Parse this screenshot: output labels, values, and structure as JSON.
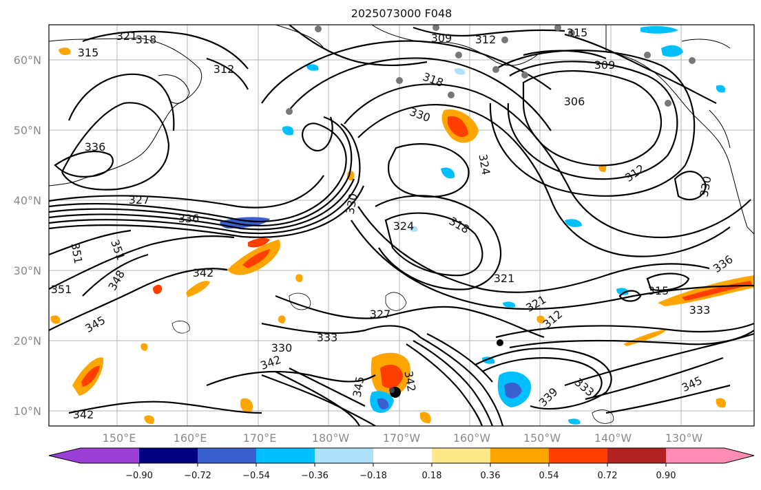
{
  "title": "2025073000 F048",
  "lat_ticks": [
    "60°N",
    "50°N",
    "40°N",
    "30°N",
    "20°N",
    "10°N"
  ],
  "lon_ticks": [
    "150°E",
    "160°E",
    "170°E",
    "180°W",
    "170°W",
    "160°W",
    "150°W",
    "140°W",
    "130°W"
  ],
  "contour_labels": [
    "321",
    "318",
    "315",
    "312",
    "309",
    "312",
    "315",
    "306",
    "309",
    "336",
    "327",
    "336",
    "351",
    "351",
    "348",
    "351",
    "345",
    "342",
    "342",
    "330",
    "324",
    "330",
    "324",
    "318",
    "318",
    "312",
    "321",
    "321",
    "312",
    "315",
    "333",
    "330",
    "336",
    "333",
    "327",
    "330",
    "342",
    "345",
    "342",
    "339",
    "333",
    "345"
  ],
  "colorbar": {
    "labels": [
      "−0.90",
      "−0.72",
      "−0.54",
      "−0.36",
      "−0.18",
      "0.18",
      "0.36",
      "0.54",
      "0.72",
      "0.90"
    ],
    "colors": [
      "#9b3fd6",
      "#000080",
      "#3b5fcf",
      "#00bfff",
      "#aee1fa",
      "#ffffff",
      "#fde98a",
      "#ffa500",
      "#ff3e00",
      "#b22222",
      "#ff8cb4"
    ]
  }
}
